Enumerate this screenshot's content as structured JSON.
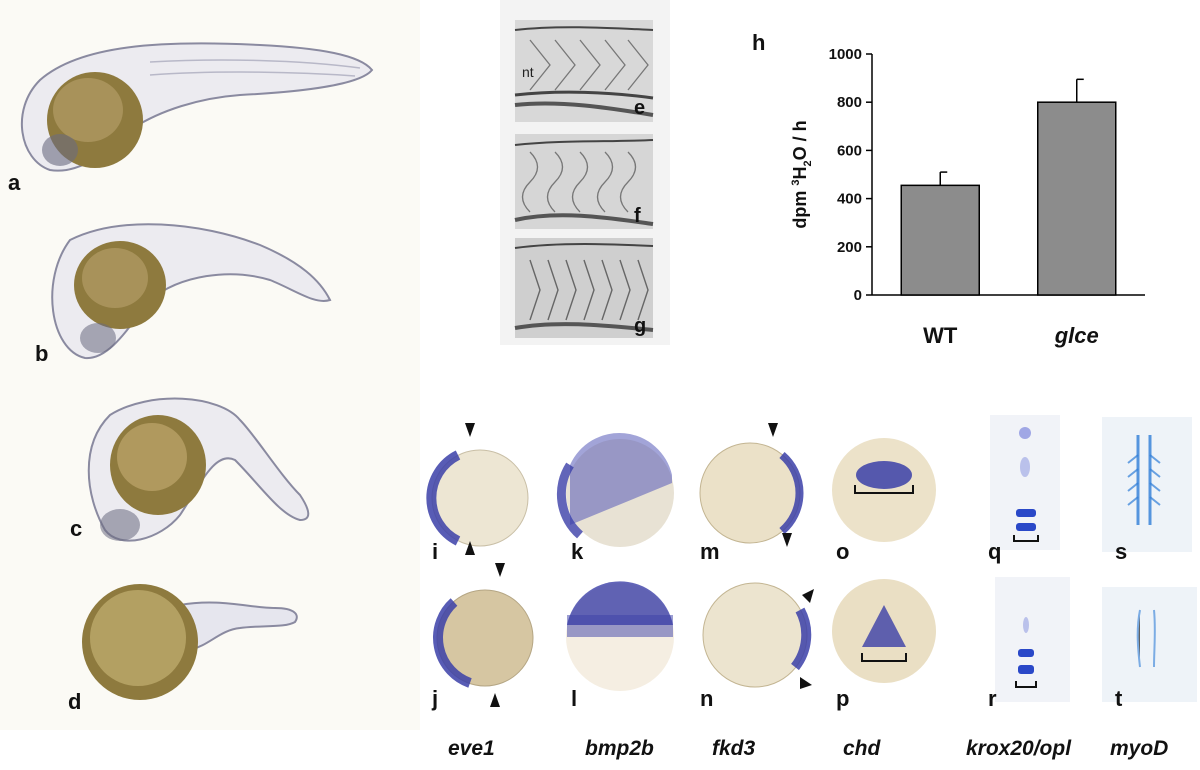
{
  "panels": {
    "a": "a",
    "b": "b",
    "c": "c",
    "d": "d",
    "e": "e",
    "f": "f",
    "g": "g",
    "h": "h",
    "i": "i",
    "j": "j",
    "k": "k",
    "l": "l",
    "m": "m",
    "n": "n",
    "o": "o",
    "p": "p",
    "q": "q",
    "r": "r",
    "s": "s",
    "t": "t"
  },
  "somite_annotation": "nt",
  "gene_labels": [
    "eve1",
    "bmp2b",
    "fkd3",
    "chd",
    "krox20/opl",
    "myoD"
  ],
  "colors": {
    "bar_fill": "#8c8c8c",
    "stain_blue": "#3b3fa8",
    "yolk": "#a8925a",
    "embryo_outline": "#8a8aa0"
  },
  "chart_data": {
    "type": "bar",
    "categories": [
      "WT",
      "glce"
    ],
    "values": [
      455,
      800
    ],
    "errors": [
      55,
      95
    ],
    "ylabel_parts": [
      "dpm ",
      "3",
      "H",
      "2",
      "O / h"
    ],
    "ylim": [
      0,
      1000
    ],
    "yticks": [
      0,
      200,
      400,
      600,
      800,
      1000
    ],
    "category_style": [
      "bold",
      "bold-italic"
    ],
    "grid": false
  }
}
